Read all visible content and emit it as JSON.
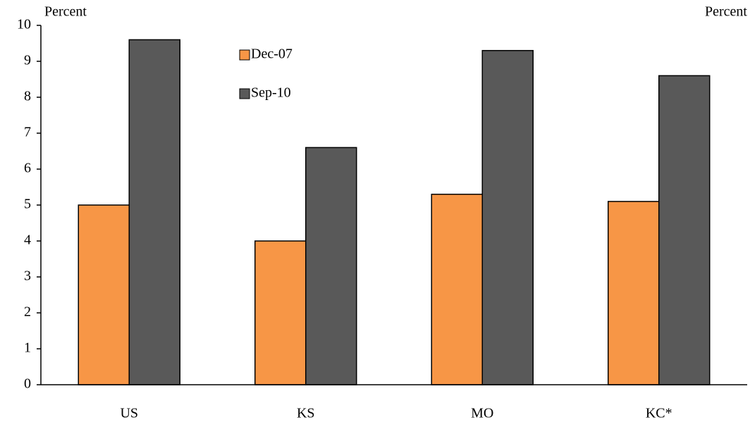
{
  "chart_data": {
    "type": "bar",
    "y_label": "Percent",
    "y2_label": "Percent",
    "categories": [
      "US",
      "KS",
      "MO",
      "KC*"
    ],
    "series": [
      {
        "name": "Dec-07",
        "color": "#f79646",
        "values": [
          5.0,
          4.0,
          5.3,
          5.1
        ]
      },
      {
        "name": "Sep-10",
        "color": "#595959",
        "values": [
          9.6,
          6.6,
          9.3,
          8.6
        ]
      }
    ],
    "ylim": [
      0,
      10
    ],
    "yticks": [
      0,
      1,
      2,
      3,
      4,
      5,
      6,
      7,
      8,
      9,
      10
    ],
    "grid": false
  }
}
